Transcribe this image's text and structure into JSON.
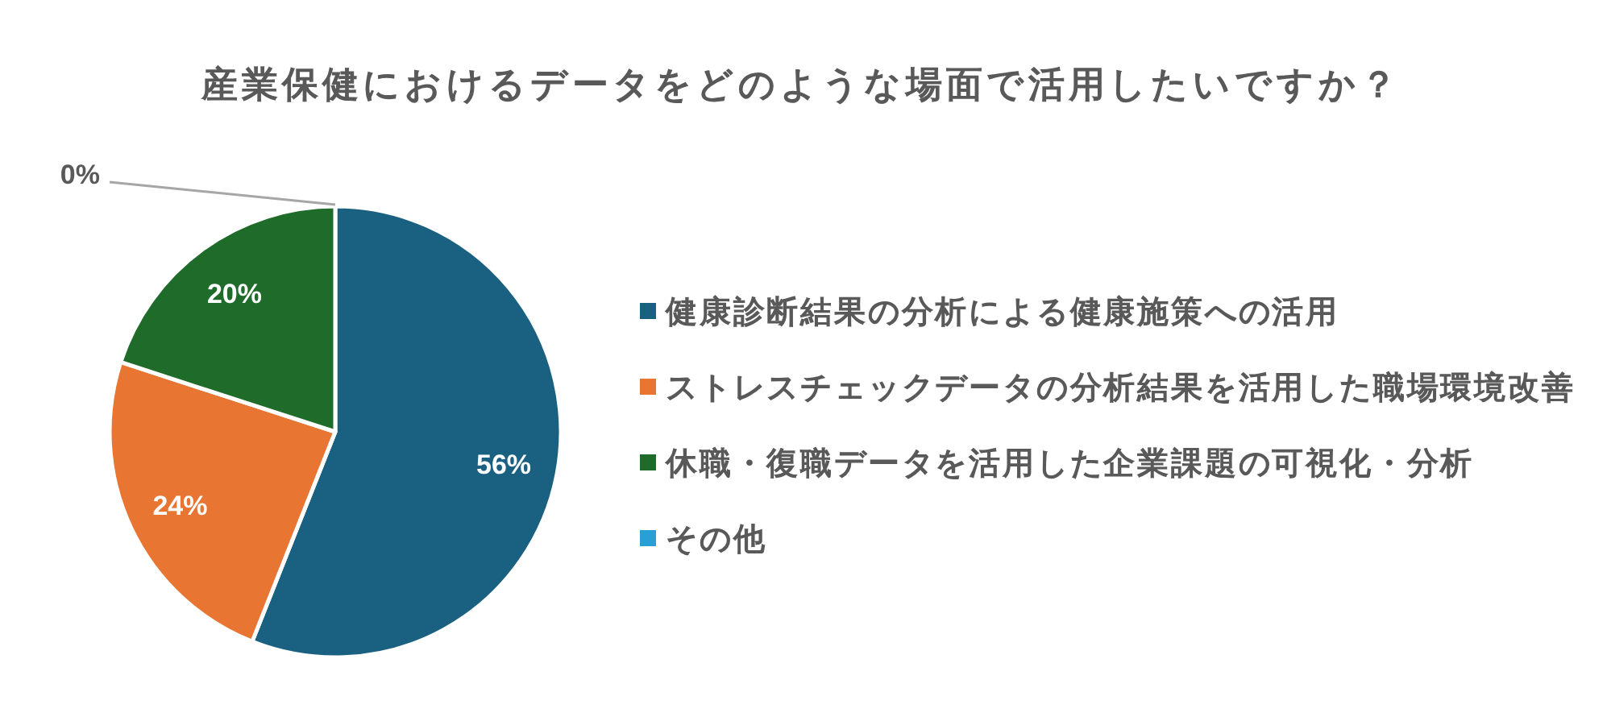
{
  "chart_data": {
    "type": "pie",
    "title": "産業保健におけるデータをどのような場面で活用したいですか？",
    "categories": [
      "健康診断結果の分析による健康施策への活用",
      "ストレスチェックデータの分析結果を活用した職場環境改善",
      "休職・復職データを活用した企業課題の可視化・分析",
      "その他"
    ],
    "values": [
      56,
      24,
      20,
      0
    ],
    "value_labels": [
      "56%",
      "24%",
      "20%",
      "0%"
    ],
    "colors": [
      "#1a6080",
      "#e87532",
      "#1e6b2a",
      "#2a9fd6"
    ],
    "legend": "right"
  }
}
